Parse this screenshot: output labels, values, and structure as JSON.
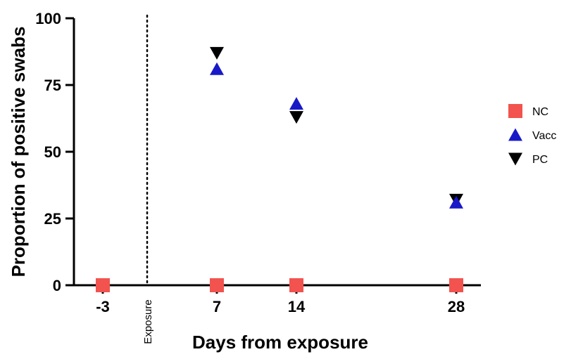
{
  "chart_data": {
    "type": "scatter",
    "xlabel": "Days from exposure",
    "ylabel": "Proportion of positive swabs",
    "ylim": [
      0,
      100
    ],
    "categories": [
      "-3",
      "7",
      "14",
      "28"
    ],
    "y_ticks": [
      "0",
      "25",
      "50",
      "75",
      "100"
    ],
    "series": [
      {
        "name": "NC",
        "marker": "square",
        "color": "#f2534f",
        "x": [
          -3,
          7,
          14,
          28
        ],
        "y": [
          0,
          0,
          0,
          0
        ]
      },
      {
        "name": "Vacc",
        "marker": "triangle-up",
        "color": "#1919c8",
        "x": [
          7,
          14,
          28
        ],
        "y": [
          81,
          68,
          31
        ]
      },
      {
        "name": "PC",
        "marker": "triangle-down",
        "color": "#000000",
        "x": [
          7,
          14,
          28
        ],
        "y": [
          87,
          63,
          32
        ]
      }
    ],
    "annotations": [
      {
        "text": "Exposure",
        "x": 1,
        "style": "dotted vertical line"
      }
    ],
    "legend": "right",
    "grid": false
  }
}
